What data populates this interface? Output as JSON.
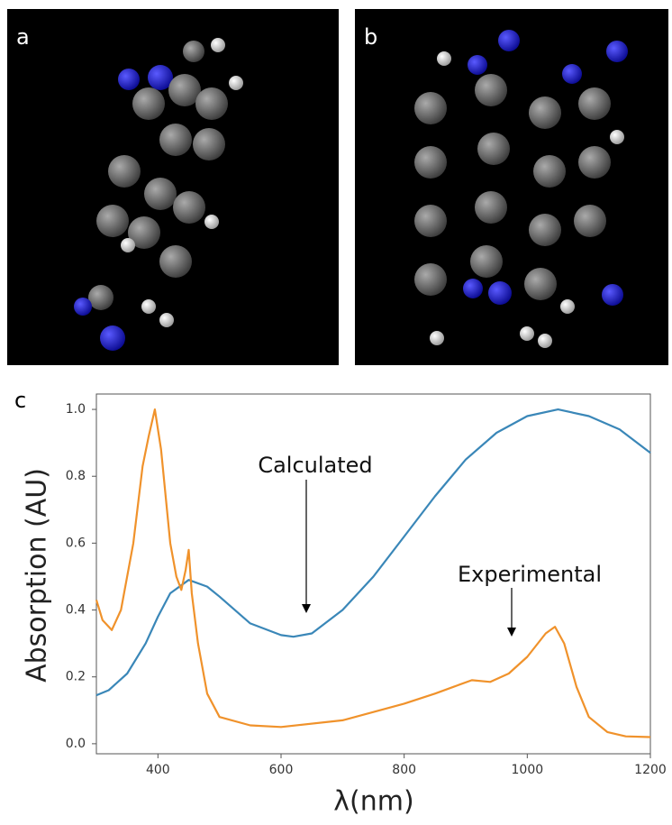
{
  "panels": {
    "a": "a",
    "b": "b"
  },
  "chart_data": {
    "type": "line",
    "panel_label": "c",
    "xlabel": "λ(nm)",
    "ylabel": "Absorption (AU)",
    "xlim": [
      300,
      1200
    ],
    "ylim": [
      -0.03,
      1.046
    ],
    "xticks": [
      400,
      600,
      800,
      1000,
      1200
    ],
    "yticks": [
      {
        "value": 0,
        "label": "0.0"
      },
      0.2,
      0.4,
      0.6,
      0.8,
      {
        "value": 1,
        "label": "1.0"
      }
    ],
    "series": [
      {
        "name": "Calculated",
        "color": "#3a87b8",
        "x": [
          300,
          320,
          350,
          380,
          400,
          420,
          450,
          480,
          500,
          550,
          600,
          620,
          650,
          700,
          750,
          800,
          850,
          900,
          950,
          1000,
          1050,
          1100,
          1150,
          1200
        ],
        "values": [
          0.145,
          0.16,
          0.21,
          0.3,
          0.38,
          0.45,
          0.49,
          0.47,
          0.44,
          0.36,
          0.325,
          0.32,
          0.33,
          0.4,
          0.5,
          0.62,
          0.74,
          0.85,
          0.93,
          0.98,
          1.0,
          0.98,
          0.94,
          0.87
        ]
      },
      {
        "name": "Experimental",
        "color": "#f0922b",
        "x": [
          300,
          310,
          325,
          340,
          360,
          375,
          385,
          395,
          405,
          420,
          430,
          438,
          445,
          450,
          455,
          465,
          480,
          500,
          550,
          600,
          700,
          800,
          850,
          880,
          910,
          940,
          970,
          1000,
          1030,
          1045,
          1060,
          1080,
          1100,
          1130,
          1160,
          1200
        ],
        "values": [
          0.43,
          0.37,
          0.34,
          0.4,
          0.6,
          0.83,
          0.92,
          1.0,
          0.88,
          0.6,
          0.5,
          0.46,
          0.52,
          0.58,
          0.45,
          0.3,
          0.15,
          0.08,
          0.055,
          0.05,
          0.07,
          0.12,
          0.15,
          0.17,
          0.19,
          0.185,
          0.21,
          0.26,
          0.33,
          0.35,
          0.3,
          0.17,
          0.08,
          0.035,
          0.022,
          0.02
        ]
      }
    ]
  }
}
